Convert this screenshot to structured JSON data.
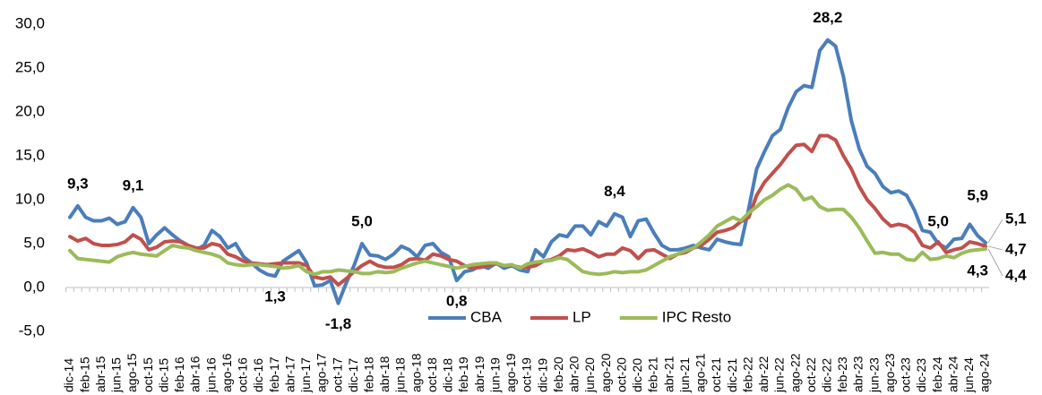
{
  "chart_data": {
    "type": "line",
    "categories": [
      "dic-14",
      null,
      "feb-15",
      null,
      "abr-15",
      null,
      "jun-15",
      null,
      "ago-15",
      null,
      "oct-15",
      null,
      "dic-15",
      null,
      "feb-16",
      null,
      "abr-16",
      null,
      "jun-16",
      null,
      "ago-16",
      null,
      "oct-16",
      null,
      "dic-16",
      null,
      "feb-17",
      null,
      "abr-17",
      null,
      "jun-17",
      null,
      "ago-17",
      null,
      "oct-17",
      null,
      "dic-17",
      null,
      "feb-18",
      null,
      "abr-18",
      null,
      "jun-18",
      null,
      "ago-18",
      null,
      "oct-18",
      null,
      "dic-18",
      null,
      "feb-19",
      null,
      "abr-19",
      null,
      "jun-19",
      null,
      "ago-19",
      null,
      "oct-19",
      null,
      "dic-19",
      null,
      "feb-20",
      null,
      "abr-20",
      null,
      "jun-20",
      null,
      "ago-20",
      null,
      "oct-20",
      null,
      "dic-20",
      null,
      "feb-21",
      null,
      "abr-21",
      null,
      "jun-21",
      null,
      "ago-21",
      null,
      "oct-21",
      null,
      "dic-21",
      null,
      "feb-22",
      null,
      "abr-22",
      null,
      "jun-22",
      null,
      "ago-22",
      null,
      "oct-22",
      null,
      "dic-22",
      null,
      "feb-23",
      null,
      "abr-23",
      null,
      "jun-23",
      null,
      "ago-23",
      null,
      "oct-23",
      null,
      "dic-23",
      null,
      "feb-24",
      null,
      "abr-24",
      null,
      "jun-24",
      null,
      "ago-24"
    ],
    "series": [
      {
        "name": "CBA",
        "color": "#4a7ebb",
        "values": [
          8.0,
          9.3,
          8.0,
          7.6,
          7.6,
          7.9,
          7.2,
          7.5,
          9.1,
          8.0,
          5.0,
          6.0,
          6.8,
          6.0,
          5.3,
          4.8,
          4.3,
          4.8,
          6.5,
          5.8,
          4.5,
          5.0,
          3.5,
          2.8,
          2.0,
          1.5,
          1.3,
          3.0,
          3.6,
          4.2,
          2.8,
          0.2,
          0.3,
          0.8,
          -1.8,
          0.5,
          2.5,
          5.0,
          3.7,
          3.6,
          3.2,
          3.8,
          4.7,
          4.3,
          3.5,
          4.8,
          5.0,
          4.0,
          3.5,
          0.8,
          1.8,
          2.0,
          2.5,
          2.2,
          2.8,
          2.2,
          2.5,
          2.0,
          1.8,
          4.3,
          3.5,
          5.2,
          6.0,
          5.8,
          7.0,
          7.0,
          6.0,
          7.5,
          7.0,
          8.4,
          8.0,
          5.8,
          7.6,
          7.8,
          6.2,
          4.8,
          4.3,
          4.3,
          4.5,
          4.8,
          4.5,
          4.3,
          5.5,
          5.2,
          5.0,
          4.9,
          9.0,
          13.5,
          15.5,
          17.3,
          18.0,
          20.5,
          22.3,
          23.0,
          22.8,
          27.0,
          28.2,
          27.5,
          24.0,
          19.0,
          15.8,
          13.8,
          13.0,
          11.5,
          10.8,
          11.0,
          10.5,
          8.8,
          6.5,
          6.3,
          5.0,
          4.5,
          5.5,
          5.6,
          7.2,
          5.9,
          5.1
        ],
        "value_labels": {
          "1": "9,3",
          "8": "9,1",
          "26": "1,3",
          "34": "-1,8",
          "37": "5,0",
          "49": "0,8",
          "69": "8,4",
          "96": "28,2",
          "110": "5,0",
          "115": "5,9",
          "116": "5,1"
        }
      },
      {
        "name": "LP",
        "color": "#c0504d",
        "values": [
          5.8,
          5.3,
          5.6,
          5.0,
          4.8,
          4.8,
          4.9,
          5.2,
          6.0,
          5.5,
          4.3,
          4.6,
          5.2,
          5.3,
          5.2,
          4.8,
          4.5,
          4.5,
          5.0,
          4.8,
          3.8,
          3.5,
          3.0,
          2.8,
          2.7,
          2.6,
          2.7,
          2.8,
          2.8,
          2.8,
          2.5,
          1.2,
          1.0,
          1.2,
          0.3,
          1.0,
          1.8,
          2.5,
          3.0,
          2.5,
          2.3,
          2.3,
          2.6,
          3.2,
          3.3,
          3.1,
          3.8,
          3.6,
          3.2,
          3.0,
          2.5,
          2.2,
          2.3,
          2.5,
          2.7,
          2.5,
          2.5,
          2.3,
          2.3,
          2.5,
          3.0,
          3.2,
          3.6,
          4.3,
          4.2,
          4.4,
          4.0,
          3.5,
          3.8,
          3.8,
          4.5,
          4.2,
          3.3,
          4.2,
          4.3,
          3.8,
          3.3,
          3.8,
          4.0,
          4.5,
          4.8,
          5.5,
          6.3,
          6.5,
          6.8,
          7.5,
          8.0,
          10.5,
          12.0,
          13.0,
          14.0,
          15.2,
          16.2,
          16.3,
          15.5,
          17.3,
          17.3,
          16.8,
          15.0,
          13.5,
          11.5,
          10.0,
          9.0,
          7.8,
          7.0,
          7.2,
          7.0,
          6.3,
          4.8,
          4.5,
          5.2,
          4.0,
          4.3,
          4.5,
          5.2,
          5.0,
          4.7
        ],
        "value_labels": {
          "116": "4,7"
        }
      },
      {
        "name": "IPC Resto",
        "color": "#9bbb59",
        "values": [
          4.2,
          3.3,
          3.2,
          3.1,
          3.0,
          2.9,
          3.5,
          3.8,
          4.0,
          3.8,
          3.7,
          3.6,
          4.2,
          4.8,
          4.6,
          4.5,
          4.2,
          4.0,
          3.8,
          3.5,
          2.8,
          2.6,
          2.5,
          2.6,
          2.6,
          2.5,
          2.4,
          2.2,
          2.3,
          2.5,
          1.8,
          1.5,
          1.8,
          1.8,
          2.0,
          1.9,
          1.8,
          1.6,
          1.6,
          1.8,
          1.7,
          1.8,
          2.2,
          2.5,
          2.8,
          3.0,
          2.8,
          2.6,
          2.4,
          2.2,
          2.4,
          2.6,
          2.7,
          2.8,
          2.8,
          2.5,
          2.6,
          2.2,
          2.7,
          2.9,
          3.0,
          3.1,
          3.4,
          3.2,
          2.5,
          1.8,
          1.6,
          1.5,
          1.6,
          1.8,
          1.7,
          1.8,
          1.8,
          2.0,
          2.5,
          3.0,
          3.5,
          3.8,
          4.2,
          4.5,
          5.2,
          6.0,
          7.0,
          7.5,
          8.0,
          7.6,
          8.5,
          9.2,
          10.0,
          10.5,
          11.2,
          11.7,
          11.2,
          10.0,
          10.3,
          9.2,
          8.8,
          8.9,
          8.9,
          8.0,
          6.8,
          5.3,
          3.9,
          4.0,
          3.8,
          3.8,
          3.2,
          3.1,
          4.0,
          3.2,
          3.3,
          3.6,
          3.4,
          3.9,
          4.2,
          4.3,
          4.4
        ],
        "value_labels": {
          "115": "4,3",
          "116": "4,4"
        }
      }
    ],
    "ylim": [
      -5,
      30
    ],
    "yticks": [
      {
        "value": -5,
        "label": "-5,0"
      },
      {
        "value": 0,
        "label": "0,0"
      },
      {
        "value": 5,
        "label": "5,0"
      },
      {
        "value": 10,
        "label": "10,0"
      },
      {
        "value": 15,
        "label": "15,0"
      },
      {
        "value": 20,
        "label": "20,0"
      },
      {
        "value": 25,
        "label": "25,0"
      },
      {
        "value": 30,
        "label": "30,0"
      }
    ],
    "grid": false,
    "legend": "bottom"
  }
}
